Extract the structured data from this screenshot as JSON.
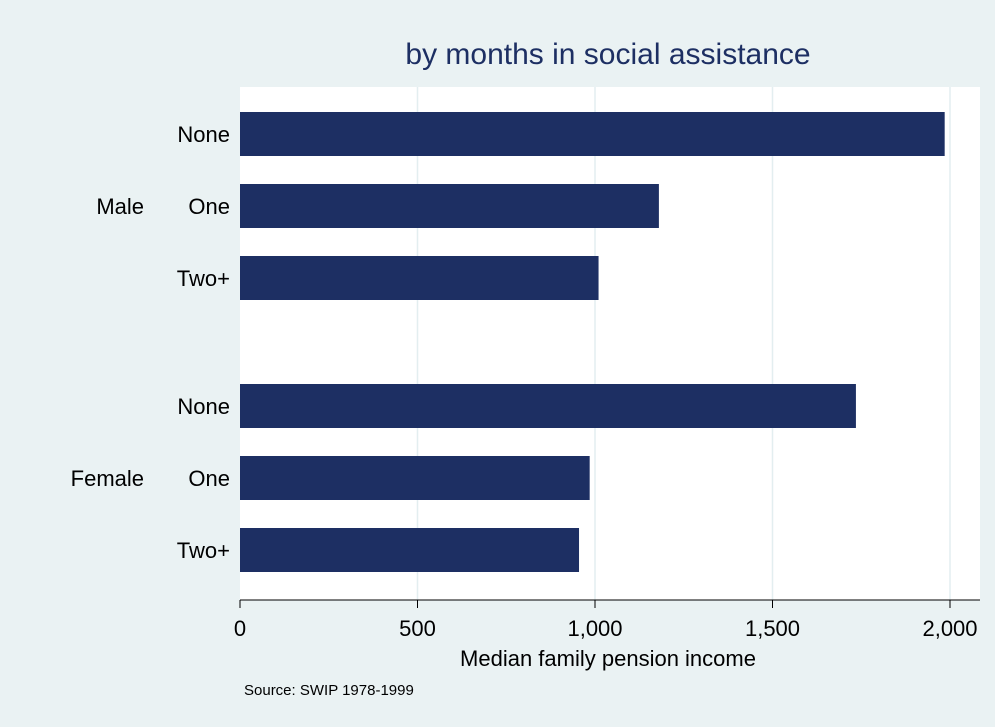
{
  "chart_data": {
    "type": "bar",
    "orientation": "horizontal",
    "title": "by months in social assistance",
    "xlabel": "Median family pension income",
    "xlim": [
      0,
      2000
    ],
    "xticks": [
      0,
      500,
      1000,
      1500,
      2000
    ],
    "xtick_labels": [
      "0",
      "500",
      "1,000",
      "1,500",
      "2,000"
    ],
    "grid": true,
    "note": "Source:  SWIP 1978-1999",
    "groups": [
      {
        "name": "Male",
        "bars": [
          {
            "label": "None",
            "value": 1985
          },
          {
            "label": "One",
            "value": 1180
          },
          {
            "label": "Two+",
            "value": 1010
          }
        ]
      },
      {
        "name": "Female",
        "bars": [
          {
            "label": "None",
            "value": 1735
          },
          {
            "label": "One",
            "value": 985
          },
          {
            "label": "Two+",
            "value": 955
          }
        ]
      }
    ],
    "colors": {
      "bar": "#1d2f63",
      "plot_background": "#ffffff",
      "page_background": "#eaf2f3",
      "grid": "#e3eef0"
    }
  }
}
